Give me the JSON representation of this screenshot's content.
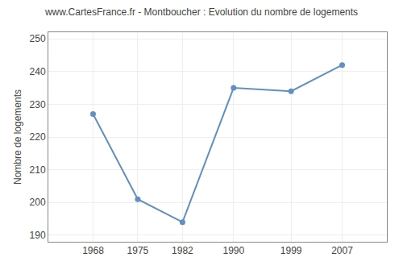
{
  "chart_data": {
    "type": "line",
    "title": "www.CartesFrance.fr - Montboucher : Evolution du nombre de logements",
    "ylabel": "Nombre de logements",
    "x": [
      1968,
      1975,
      1982,
      1990,
      1999,
      2007
    ],
    "values": [
      227,
      201,
      194,
      235,
      234,
      242
    ],
    "color": "#6090c0",
    "marker": "circle",
    "xlim": [
      1961,
      2014
    ],
    "xticks": [
      1968,
      1975,
      1982,
      1990,
      1999,
      2007
    ],
    "ylim": [
      188,
      252
    ],
    "yticks": [
      190,
      200,
      210,
      220,
      230,
      240,
      250
    ],
    "grid": true
  }
}
